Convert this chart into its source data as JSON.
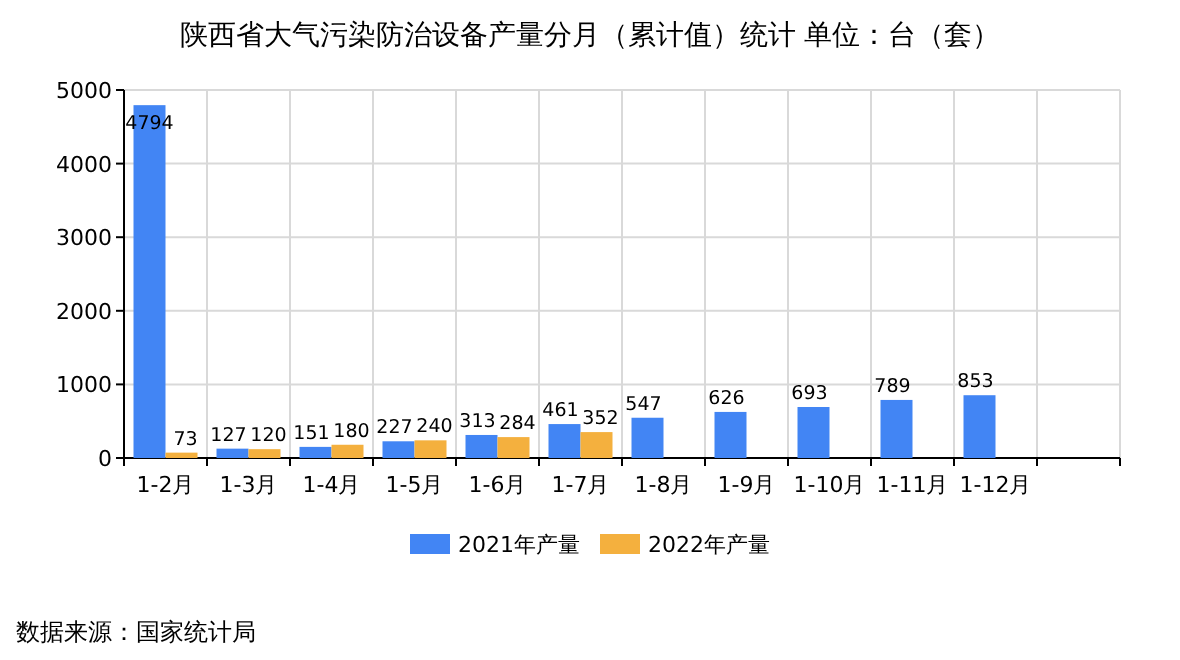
{
  "chart_data": {
    "type": "bar",
    "title": "陕西省大气污染防治设备产量分月（累计值）统计 单位：台（套）",
    "categories": [
      "1-2月",
      "1-3月",
      "1-4月",
      "1-5月",
      "1-6月",
      "1-7月",
      "1-8月",
      "1-9月",
      "1-10月",
      "1-11月",
      "1-12月",
      null
    ],
    "series": [
      {
        "name": "2021年产量",
        "color": "#4285f4",
        "values": [
          4794,
          127,
          151,
          227,
          313,
          461,
          547,
          626,
          693,
          789,
          853,
          null
        ]
      },
      {
        "name": "2022年产量",
        "color": "#f4b03e",
        "values": [
          73,
          120,
          180,
          240,
          284,
          352,
          null,
          null,
          null,
          null,
          null,
          null
        ]
      }
    ],
    "ylim": [
      0,
      5000
    ],
    "yticks": [
      0,
      1000,
      2000,
      3000,
      4000,
      5000
    ],
    "grid": true,
    "legend": "bottom",
    "data_labels": true,
    "annotations": [
      "数据来源：国家统计局"
    ]
  }
}
